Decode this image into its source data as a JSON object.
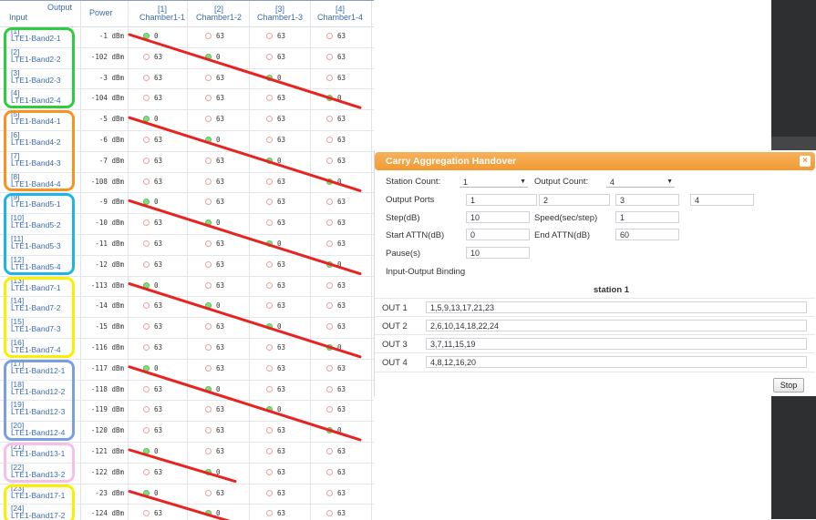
{
  "header": {
    "output": "Output",
    "input": "Input",
    "power": "Power",
    "chambers": [
      {
        "idx": "[1]",
        "name": "Chamber1-1"
      },
      {
        "idx": "[2]",
        "name": "Chamber1-2"
      },
      {
        "idx": "[3]",
        "name": "Chamber1-3"
      },
      {
        "idx": "[4]",
        "name": "Chamber1-4"
      }
    ]
  },
  "rows": [
    {
      "idx": "[1]",
      "name": "LTE1-Band2-1",
      "power": "-1 dBm",
      "on": 0
    },
    {
      "idx": "[2]",
      "name": "LTE1-Band2-2",
      "power": "-102 dBm",
      "on": 1
    },
    {
      "idx": "[3]",
      "name": "LTE1-Band2-3",
      "power": "-3 dBm",
      "on": 2
    },
    {
      "idx": "[4]",
      "name": "LTE1-Band2-4",
      "power": "-104 dBm",
      "on": 3
    },
    {
      "idx": "[5]",
      "name": "LTE1-Band4-1",
      "power": "-5 dBm",
      "on": 0
    },
    {
      "idx": "[6]",
      "name": "LTE1-Band4-2",
      "power": "-6 dBm",
      "on": 1
    },
    {
      "idx": "[7]",
      "name": "LTE1-Band4-3",
      "power": "-7 dBm",
      "on": 2
    },
    {
      "idx": "[8]",
      "name": "LTE1-Band4-4",
      "power": "-108 dBm",
      "on": 3
    },
    {
      "idx": "[9]",
      "name": "LTE1-Band5-1",
      "power": "-9 dBm",
      "on": 0
    },
    {
      "idx": "[10]",
      "name": "LTE1-Band5-2",
      "power": "-10 dBm",
      "on": 1
    },
    {
      "idx": "[11]",
      "name": "LTE1-Band5-3",
      "power": "-11 dBm",
      "on": 2
    },
    {
      "idx": "[12]",
      "name": "LTE1-Band5-4",
      "power": "-12 dBm",
      "on": 3
    },
    {
      "idx": "[13]",
      "name": "LTE1-Band7-1",
      "power": "-113 dBm",
      "on": 0
    },
    {
      "idx": "[14]",
      "name": "LTE1-Band7-2",
      "power": "-14 dBm",
      "on": 1
    },
    {
      "idx": "[15]",
      "name": "LTE1-Band7-3",
      "power": "-15 dBm",
      "on": 2
    },
    {
      "idx": "[16]",
      "name": "LTE1-Band7-4",
      "power": "-116 dBm",
      "on": 3
    },
    {
      "idx": "[17]",
      "name": "LTE1-Band12-1",
      "power": "-117 dBm",
      "on": 0
    },
    {
      "idx": "[18]",
      "name": "LTE1-Band12-2",
      "power": "-118 dBm",
      "on": 1
    },
    {
      "idx": "[19]",
      "name": "LTE1-Band12-3",
      "power": "-119 dBm",
      "on": 2
    },
    {
      "idx": "[20]",
      "name": "LTE1-Band12-4",
      "power": "-120 dBm",
      "on": 3
    },
    {
      "idx": "[21]",
      "name": "LTE1-Band13-1",
      "power": "-121 dBm",
      "on": 0
    },
    {
      "idx": "[22]",
      "name": "LTE1-Band13-2",
      "power": "-122 dBm",
      "on": 1
    },
    {
      "idx": "[23]",
      "name": "LTE1-Band17-1",
      "power": "-23 dBm",
      "on": 0
    },
    {
      "idx": "[24]",
      "name": "LTE1-Band17-2",
      "power": "-124 dBm",
      "on": 1
    }
  ],
  "cell_values": {
    "on": "0",
    "off": "63"
  },
  "groups": [
    {
      "color": "#2ecc40",
      "start": 0,
      "count": 4
    },
    {
      "color": "#f7931e",
      "start": 4,
      "count": 4
    },
    {
      "color": "#1fb4e8",
      "start": 8,
      "count": 4
    },
    {
      "color": "#f8f000",
      "start": 12,
      "count": 4
    },
    {
      "color": "#7b9ee0",
      "start": 16,
      "count": 4
    },
    {
      "color": "#f6c0e6",
      "start": 20,
      "count": 2
    },
    {
      "color": "#f8f000",
      "start": 22,
      "count": 2
    }
  ],
  "annotation_color": "#e8231f",
  "dialog": {
    "title": "Carry Aggregation Handover",
    "close": "×",
    "station_count_label": "Station Count:",
    "station_count": "1",
    "output_count_label": "Output Count:",
    "output_count": "4",
    "output_ports_label": "Output Ports",
    "ports": [
      "1",
      "2",
      "3",
      "4"
    ],
    "step_label": "Step(dB)",
    "step": "10",
    "speed_label": "Speed(sec/step)",
    "speed": "1",
    "start_attn_label": "Start ATTN(dB)",
    "start_attn": "0",
    "end_attn_label": "End ATTN(dB)",
    "end_attn": "60",
    "pause_label": "Pause(s)",
    "pause": "10",
    "binding_label": "Input-Output Binding",
    "station_title": "station 1",
    "outs": [
      {
        "label": "OUT 1",
        "value": "1,5,9,13,17,21,23"
      },
      {
        "label": "OUT 2",
        "value": "2,6,10,14,18,22,24"
      },
      {
        "label": "OUT 3",
        "value": "3,7,11,15,19"
      },
      {
        "label": "OUT 4",
        "value": "4,8,12,16,20"
      }
    ],
    "stop_label": "Stop"
  }
}
